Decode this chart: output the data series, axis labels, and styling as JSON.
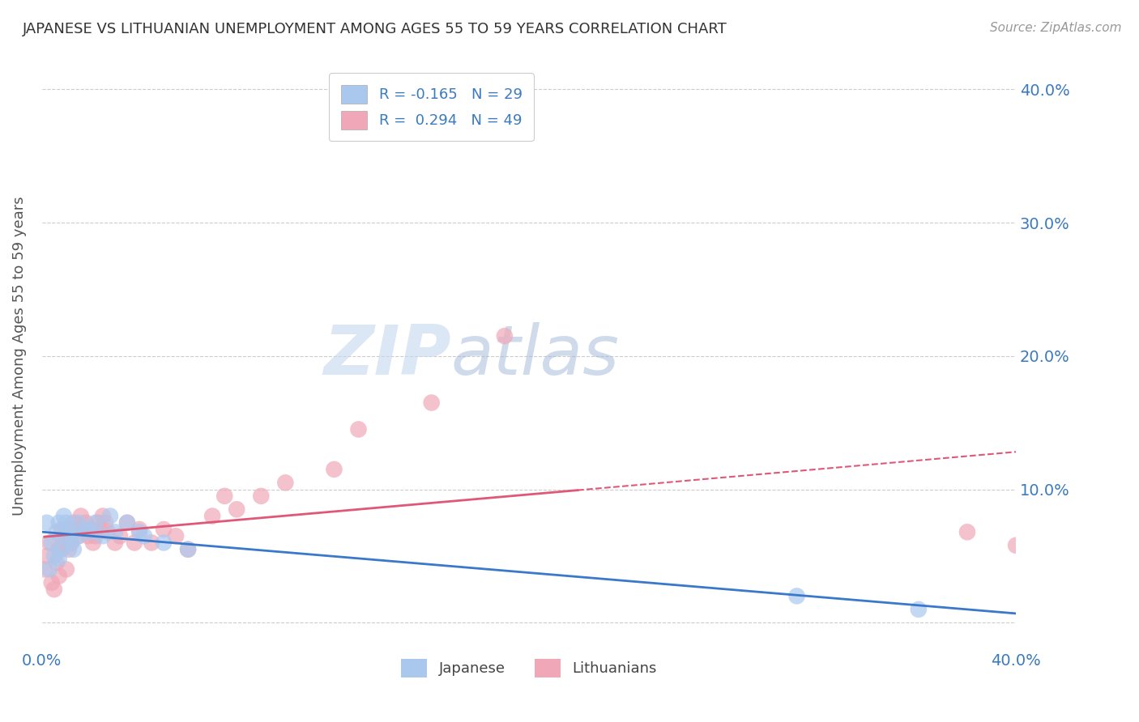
{
  "title": "JAPANESE VS LITHUANIAN UNEMPLOYMENT AMONG AGES 55 TO 59 YEARS CORRELATION CHART",
  "source": "Source: ZipAtlas.com",
  "ylabel": "Unemployment Among Ages 55 to 59 years",
  "xlim": [
    0.0,
    0.4
  ],
  "ylim": [
    -0.02,
    0.42
  ],
  "yticks": [
    0.0,
    0.1,
    0.2,
    0.3,
    0.4
  ],
  "ytick_labels": [
    "",
    "10.0%",
    "20.0%",
    "30.0%",
    "40.0%"
  ],
  "xtick_labels": [
    "0.0%",
    "40.0%"
  ],
  "japanese_R": -0.165,
  "japanese_N": 29,
  "lithuanian_R": 0.294,
  "lithuanian_N": 49,
  "japanese_color": "#aac8ee",
  "lithuanian_color": "#f0a8b8",
  "japanese_line_color": "#3a78c9",
  "lithuanian_line_color": "#e05878",
  "watermark_zip": "ZIP",
  "watermark_atlas": "atlas",
  "background_color": "#ffffff",
  "japanese_x": [
    0.002,
    0.003,
    0.004,
    0.005,
    0.006,
    0.007,
    0.007,
    0.008,
    0.009,
    0.01,
    0.01,
    0.011,
    0.012,
    0.013,
    0.015,
    0.015,
    0.018,
    0.02,
    0.022,
    0.025,
    0.028,
    0.03,
    0.035,
    0.04,
    0.042,
    0.05,
    0.06,
    0.31,
    0.36
  ],
  "japanese_y": [
    0.075,
    0.04,
    0.06,
    0.05,
    0.068,
    0.048,
    0.075,
    0.055,
    0.08,
    0.065,
    0.075,
    0.07,
    0.06,
    0.055,
    0.065,
    0.075,
    0.07,
    0.068,
    0.075,
    0.065,
    0.08,
    0.068,
    0.075,
    0.068,
    0.065,
    0.06,
    0.055,
    0.02,
    0.01
  ],
  "lithuanian_x": [
    0.001,
    0.002,
    0.003,
    0.004,
    0.005,
    0.006,
    0.007,
    0.007,
    0.008,
    0.009,
    0.01,
    0.01,
    0.011,
    0.012,
    0.013,
    0.014,
    0.015,
    0.016,
    0.017,
    0.018,
    0.019,
    0.02,
    0.021,
    0.022,
    0.023,
    0.024,
    0.025,
    0.026,
    0.027,
    0.03,
    0.032,
    0.035,
    0.038,
    0.04,
    0.045,
    0.05,
    0.055,
    0.06,
    0.07,
    0.075,
    0.08,
    0.09,
    0.1,
    0.12,
    0.13,
    0.16,
    0.19,
    0.38,
    0.4
  ],
  "lithuanian_y": [
    0.04,
    0.05,
    0.06,
    0.03,
    0.025,
    0.045,
    0.055,
    0.035,
    0.07,
    0.06,
    0.04,
    0.065,
    0.055,
    0.06,
    0.075,
    0.07,
    0.065,
    0.08,
    0.07,
    0.075,
    0.065,
    0.07,
    0.06,
    0.065,
    0.075,
    0.07,
    0.08,
    0.075,
    0.068,
    0.06,
    0.065,
    0.075,
    0.06,
    0.07,
    0.06,
    0.07,
    0.065,
    0.055,
    0.08,
    0.095,
    0.085,
    0.095,
    0.105,
    0.115,
    0.145,
    0.165,
    0.215,
    0.068,
    0.058
  ],
  "lt_line_xstart": 0.001,
  "lt_line_xend": 0.22,
  "lt_dash_xstart": 0.22,
  "lt_dash_xend": 0.4
}
